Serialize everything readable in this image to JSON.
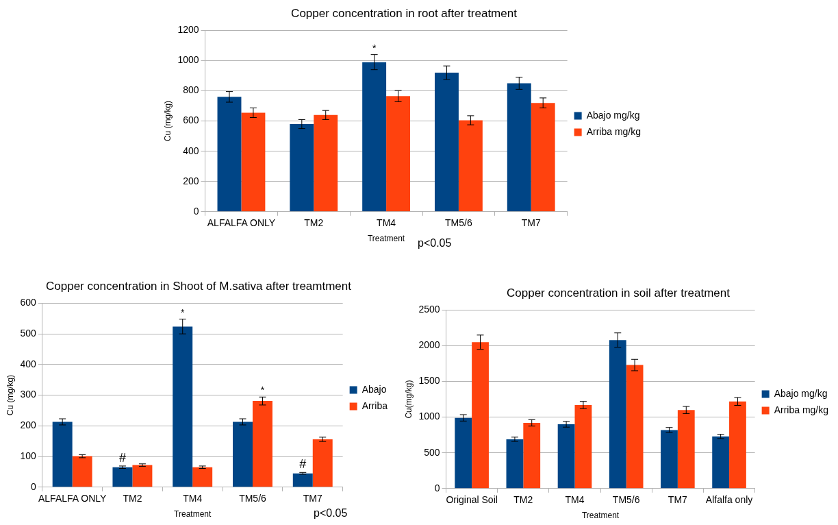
{
  "chart_data": [
    {
      "type": "bar",
      "title": "Copper concentration in root after treatment",
      "xlabel": "Treatment",
      "ylabel": "Cu (mg/kg)",
      "categories": [
        "ALFALFA ONLY",
        "TM2",
        "TM4",
        "TM5/6",
        "TM7"
      ],
      "series": [
        {
          "name": "Abajo mg/kg",
          "color": "#004586",
          "values": [
            760,
            580,
            990,
            920,
            850
          ],
          "errors": [
            35,
            30,
            50,
            45,
            40
          ]
        },
        {
          "name": "Arriba mg/kg",
          "color": "#ff420e",
          "values": [
            655,
            640,
            765,
            605,
            720
          ],
          "errors": [
            32,
            30,
            37,
            30,
            33
          ]
        }
      ],
      "ylim": [
        0,
        1200
      ],
      "yticks": [
        0,
        200,
        400,
        600,
        800,
        1000,
        1200
      ],
      "grid": "y",
      "legend": "right",
      "annotations": [
        {
          "text": "*",
          "x": "TM4",
          "y": 990
        },
        "p<0.05"
      ]
    },
    {
      "type": "bar",
      "title": "Copper concentration in Shoot of M.sativa after treamtment",
      "xlabel": "Treatment",
      "ylabel": "Cu (mg/kg)",
      "categories": [
        "ALFALFA ONLY",
        "TM2",
        "TM4",
        "TM5/6",
        "TM7"
      ],
      "series": [
        {
          "name": "Abajo",
          "color": "#004586",
          "values": [
            213,
            65,
            524,
            213,
            45
          ],
          "errors": [
            10,
            4,
            24,
            10,
            3
          ]
        },
        {
          "name": "Arriba",
          "color": "#ff420e",
          "values": [
            101,
            72,
            65,
            281,
            156
          ],
          "errors": [
            5,
            4,
            4,
            13,
            7
          ]
        }
      ],
      "ylim": [
        0,
        600
      ],
      "yticks": [
        0,
        100,
        200,
        300,
        400,
        500,
        600
      ],
      "grid": "y",
      "legend": "right",
      "annotations": [
        {
          "text": "*",
          "x": "TM4",
          "y": 524
        },
        {
          "text": "*",
          "x": "TM5/6",
          "y": 281
        },
        {
          "text": "#",
          "x": "TM2",
          "y": 65
        },
        {
          "text": "#",
          "x": "TM7",
          "y": 45
        },
        "p<0.05"
      ]
    },
    {
      "type": "bar",
      "title": "Copper concentration in soil after treatment",
      "xlabel": "Treatment",
      "ylabel": "Cu(mg/kg)",
      "categories": [
        "Original Soil",
        "TM2",
        "TM4",
        "TM5/6",
        "TM7",
        "Alfalfa only"
      ],
      "series": [
        {
          "name": "Abajo mg/kg",
          "color": "#004586",
          "values": [
            990,
            690,
            900,
            2080,
            820,
            730
          ],
          "errors": [
            45,
            30,
            40,
            100,
            35,
            30
          ]
        },
        {
          "name": "Arriba mg/kg",
          "color": "#ff420e",
          "values": [
            2050,
            920,
            1170,
            1730,
            1100,
            1220
          ],
          "errors": [
            100,
            45,
            50,
            80,
            50,
            55
          ]
        }
      ],
      "ylim": [
        0,
        2500
      ],
      "yticks": [
        0,
        500,
        1000,
        1500,
        2000,
        2500
      ],
      "grid": "y",
      "legend": "right"
    }
  ]
}
